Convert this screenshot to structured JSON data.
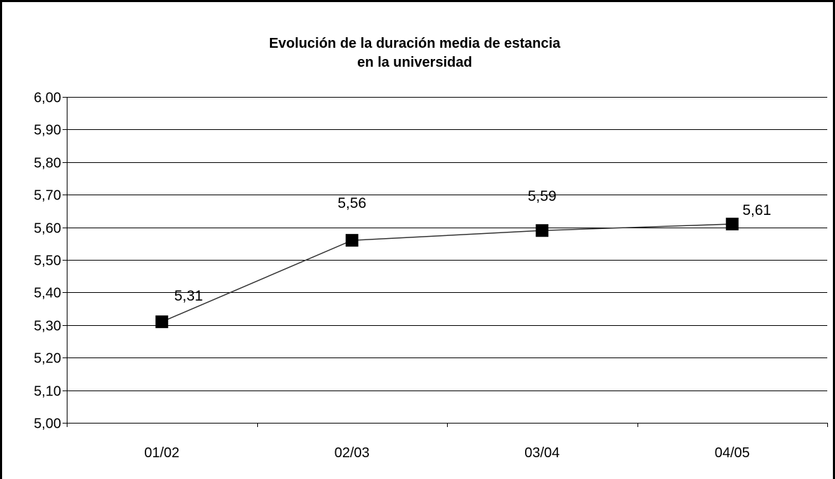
{
  "chart_data": {
    "type": "line",
    "title_lines": [
      "Evolución de la duración media de estancia",
      "en la universidad"
    ],
    "categories": [
      "01/02",
      "02/03",
      "03/04",
      "04/05"
    ],
    "values": [
      5.31,
      5.56,
      5.59,
      5.61
    ],
    "data_labels": [
      "5,31",
      "5,56",
      "5,59",
      "5,61"
    ],
    "ylim": [
      5.0,
      6.0
    ],
    "yticks": [
      5.0,
      5.1,
      5.2,
      5.3,
      5.4,
      5.5,
      5.6,
      5.7,
      5.8,
      5.9,
      6.0
    ],
    "ytick_labels": [
      "5,00",
      "5,10",
      "5,20",
      "5,30",
      "5,40",
      "5,50",
      "5,60",
      "5,70",
      "5,80",
      "5,90",
      "6,00"
    ],
    "xlabel": "",
    "ylabel": "",
    "grid": true,
    "legend": "none",
    "marker": "square",
    "line_color": "#333333",
    "marker_color": "#000000"
  }
}
